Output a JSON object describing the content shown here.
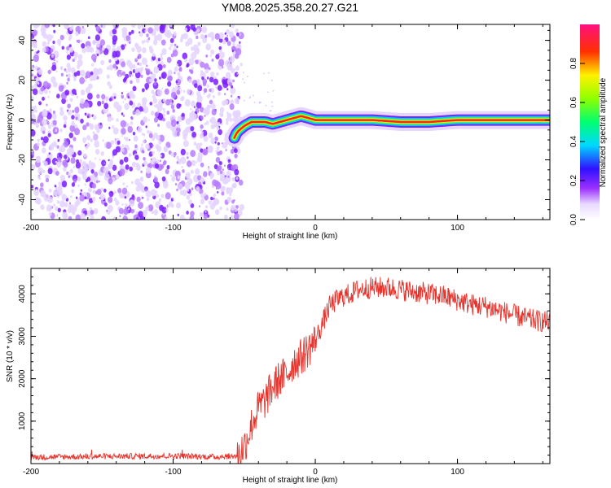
{
  "title": "YM08.2025.358.20.27.G21",
  "chart_data": [
    {
      "type": "heatmap",
      "xlabel": "Height of straight line (km)",
      "ylabel": "Frequency (Hz)",
      "xlim": [
        -200,
        165
      ],
      "ylim": [
        -50,
        48
      ],
      "xticks": [
        -200,
        -100,
        0,
        100
      ],
      "yticks": [
        -40,
        -20,
        0,
        20,
        40
      ],
      "noise_region": {
        "x": [
          -200,
          -55
        ],
        "frequency_range": [
          -50,
          48
        ]
      },
      "trace": {
        "x": [
          -57,
          -55,
          -50,
          -45,
          -40,
          -35,
          -30,
          -25,
          -20,
          -15,
          -10,
          -5,
          0,
          20,
          40,
          60,
          80,
          100,
          120,
          140,
          160,
          165
        ],
        "y": [
          -9,
          -6,
          -3,
          -1,
          -1,
          -1,
          -2,
          -1,
          0,
          1,
          2,
          1,
          0,
          0,
          0,
          -1,
          -1,
          0,
          0,
          0,
          0,
          0
        ]
      },
      "colorbar": {
        "label": "Normalized spectral amplitude",
        "range": [
          0,
          1
        ],
        "ticks": [
          "0.0",
          "0.2",
          "0.4",
          "0.6",
          "0.8"
        ]
      }
    },
    {
      "type": "line",
      "xlabel": "Height of straight line (km)",
      "ylabel": "SNR (10 * v/v)",
      "xlim": [
        -200,
        165
      ],
      "ylim": [
        0,
        4600
      ],
      "xticks": [
        -200,
        -100,
        0,
        100
      ],
      "yticks": [
        1000,
        2000,
        3000,
        4000
      ],
      "color": "#e8332c",
      "series": [
        {
          "x": [
            -200,
            -150,
            -100,
            -70,
            -55,
            -50,
            -45,
            -40,
            -35,
            -30,
            -25,
            -20,
            -15,
            -10,
            -5,
            0,
            5,
            10,
            15,
            20,
            25,
            30,
            40,
            50,
            60,
            70,
            80,
            90,
            100,
            110,
            120,
            130,
            140,
            150,
            160,
            165
          ],
          "y": [
            150,
            170,
            180,
            160,
            180,
            400,
            900,
            1300,
            1500,
            1800,
            2000,
            2100,
            2400,
            2500,
            2700,
            2900,
            3300,
            3700,
            3850,
            3950,
            4000,
            4100,
            4150,
            4150,
            4100,
            4050,
            4000,
            3950,
            3850,
            3750,
            3700,
            3600,
            3500,
            3400,
            3350,
            3350
          ]
        }
      ]
    }
  ]
}
